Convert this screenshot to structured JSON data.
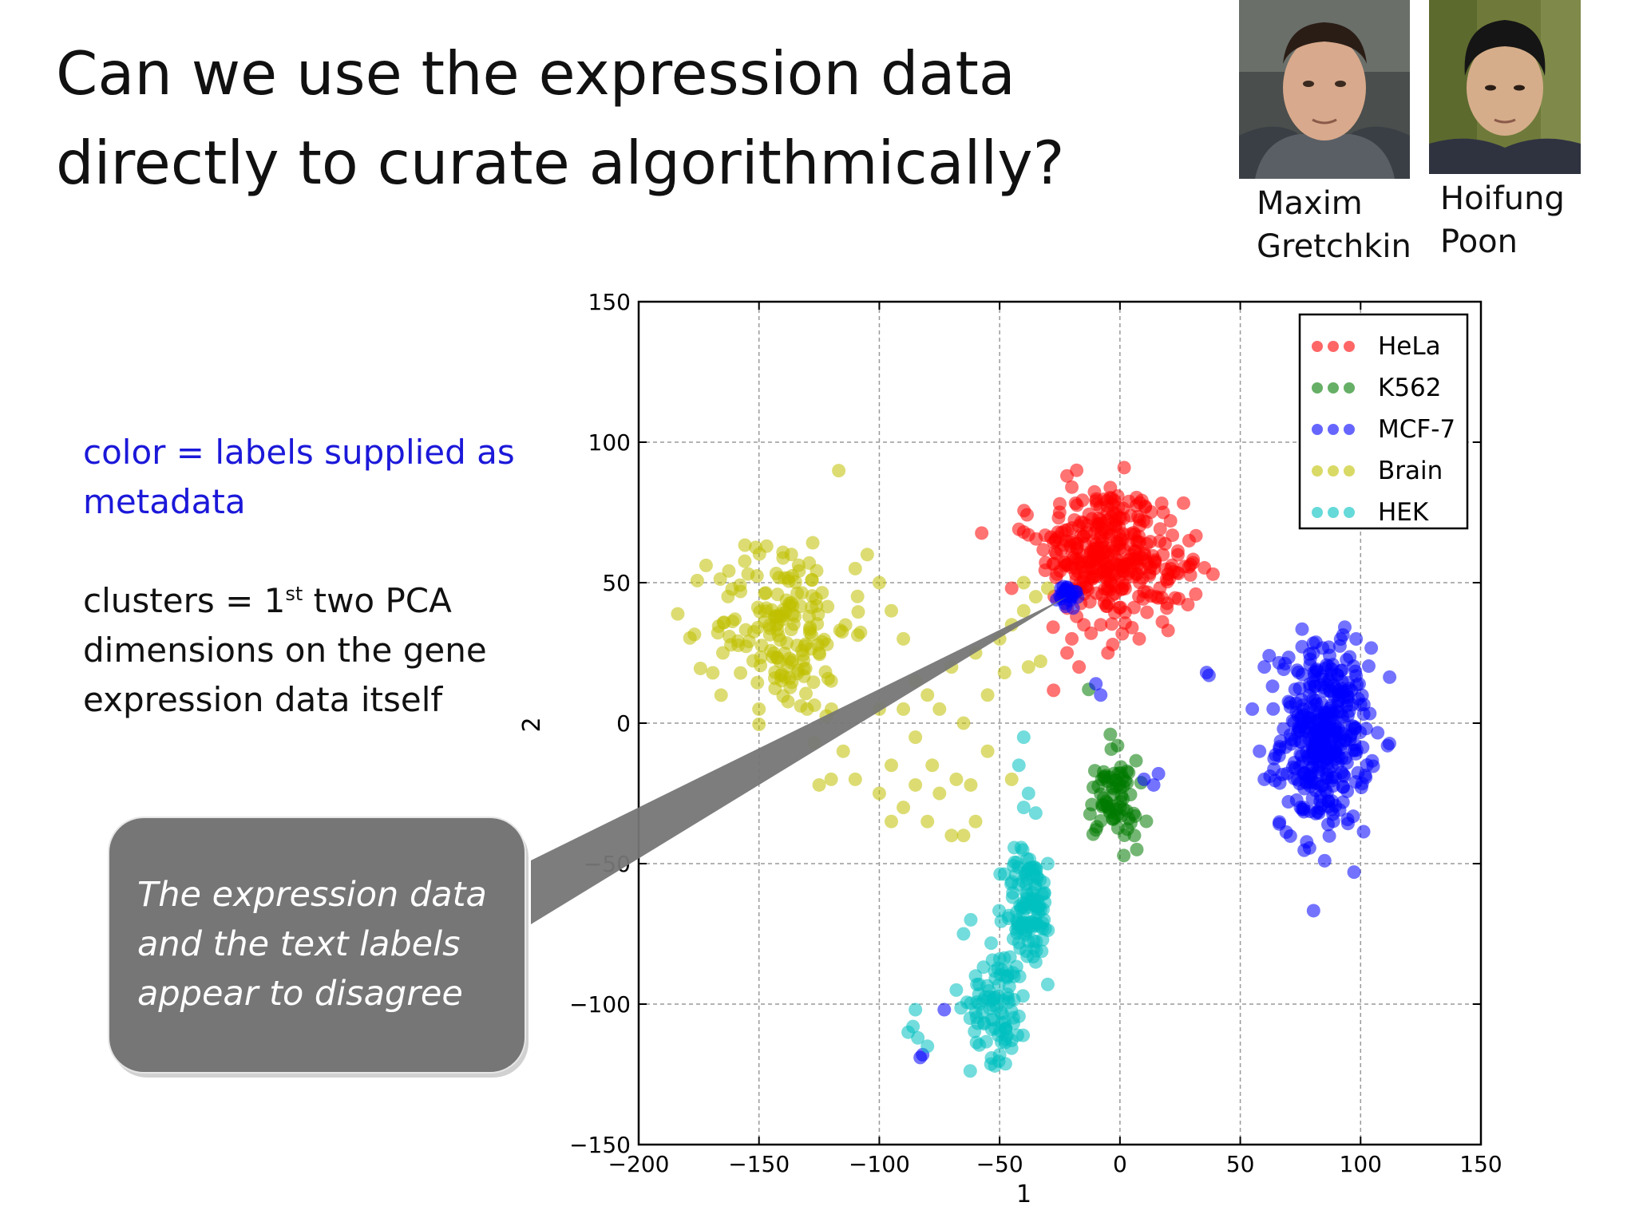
{
  "title": {
    "line1": "Can we use the expression data",
    "line2": "directly to curate algorithmically?"
  },
  "people": [
    {
      "first": "Maxim",
      "last": "Gretchkin"
    },
    {
      "first": "Hoifung",
      "last": "Poon"
    }
  ],
  "notes": {
    "color_note": "color = labels supplied as metadata",
    "clusters_a": "clusters = 1",
    "clusters_sup": "st",
    "clusters_b": " two PCA dimensions on the gene expression data itself"
  },
  "callout": {
    "line1": "The expression data",
    "line2": "and the text labels",
    "line3": "appear to disagree"
  },
  "colors": {
    "HeLa": "#ff0000",
    "K562": "#007a00",
    "MCF-7": "#0000ff",
    "Brain": "#bfbf00",
    "HEK": "#00bfbf",
    "callout": "#767676"
  },
  "chart_data": {
    "type": "scatter",
    "xlabel": "1",
    "ylabel": "2",
    "xlim": [
      -200,
      150
    ],
    "ylim": [
      -150,
      150
    ],
    "xticks": [
      "−200",
      "−150",
      "−100",
      "−50",
      "0",
      "50",
      "100",
      "150"
    ],
    "yticks": [
      "−150",
      "−100",
      "−50",
      "0",
      "50",
      "100",
      "150"
    ],
    "grid": true,
    "legend_position": "top-right",
    "series": [
      {
        "name": "HeLa",
        "color": "#ff0000",
        "clusters": [
          {
            "cx": -9,
            "cy": 62,
            "sx": 12,
            "sy": 12,
            "n": 230
          },
          {
            "cx": 10,
            "cy": 55,
            "sx": 12,
            "sy": 10,
            "n": 110
          }
        ],
        "points": [
          [
            -22,
            88
          ],
          [
            -20,
            84
          ],
          [
            -18,
            90
          ],
          [
            -40,
            68
          ],
          [
            -42,
            69
          ],
          [
            -38,
            67
          ],
          [
            -45,
            48
          ],
          [
            -18,
            38
          ],
          [
            -15,
            35
          ],
          [
            -12,
            32
          ],
          [
            -20,
            30
          ],
          [
            -22,
            25
          ],
          [
            -17,
            20
          ],
          [
            -8,
            35
          ],
          [
            5,
            34
          ],
          [
            8,
            30
          ],
          [
            20,
            33
          ],
          [
            -5,
            25
          ],
          [
            -3,
            28
          ],
          [
            15,
            45
          ],
          [
            18,
            75
          ],
          [
            21,
            72
          ]
        ]
      },
      {
        "name": "K562",
        "color": "#007a00",
        "clusters": [
          {
            "cx": -3,
            "cy": -27,
            "sx": 5,
            "sy": 7,
            "n": 70
          }
        ],
        "points": [
          [
            -1,
            -8
          ],
          [
            -4,
            -4
          ],
          [
            -13,
            12
          ],
          [
            6,
            -40
          ],
          [
            7,
            -45
          ],
          [
            -10,
            -38
          ]
        ]
      },
      {
        "name": "MCF-7",
        "color": "#0000ff",
        "clusters": [
          {
            "cx": 85,
            "cy": -5,
            "sx": 9,
            "sy": 16,
            "n": 380
          },
          {
            "cx": -22,
            "cy": 45,
            "sx": 2,
            "sy": 2.5,
            "n": 25
          }
        ],
        "points": [
          [
            36,
            18
          ],
          [
            37,
            17
          ],
          [
            -10,
            14
          ],
          [
            -8,
            10
          ],
          [
            16,
            -18
          ],
          [
            14,
            -22
          ],
          [
            10,
            -20
          ],
          [
            60,
            20
          ],
          [
            62,
            24
          ],
          [
            55,
            5
          ],
          [
            58,
            -10
          ],
          [
            60,
            -20
          ],
          [
            70,
            -28
          ],
          [
            75,
            -30
          ],
          [
            -73,
            -102
          ],
          [
            -82,
            -118
          ],
          [
            -83,
            -119
          ]
        ]
      },
      {
        "name": "Brain",
        "color": "#bfbf00",
        "clusters": [
          {
            "cx": -140,
            "cy": 35,
            "sx": 14,
            "sy": 16,
            "n": 170
          }
        ],
        "points": [
          [
            -160,
            37
          ],
          [
            -165,
            25
          ],
          [
            -150,
            5
          ],
          [
            -130,
            5
          ],
          [
            -120,
            15
          ],
          [
            -110,
            55
          ],
          [
            -105,
            60
          ],
          [
            -100,
            50
          ],
          [
            -95,
            40
          ],
          [
            -90,
            30
          ],
          [
            -85,
            15
          ],
          [
            -115,
            -10
          ],
          [
            -110,
            -20
          ],
          [
            -100,
            -25
          ],
          [
            -90,
            -30
          ],
          [
            -80,
            -35
          ],
          [
            -70,
            -40
          ],
          [
            -65,
            -40
          ],
          [
            -60,
            -35
          ],
          [
            -95,
            -15
          ],
          [
            -85,
            -5
          ],
          [
            -75,
            -25
          ],
          [
            -100,
            5
          ],
          [
            -90,
            5
          ],
          [
            -80,
            10
          ],
          [
            -70,
            20
          ],
          [
            -60,
            25
          ],
          [
            -50,
            30
          ],
          [
            -45,
            35
          ],
          [
            -40,
            40
          ],
          [
            -35,
            45
          ],
          [
            -30,
            48
          ],
          [
            -48,
            18
          ],
          [
            -55,
            10
          ],
          [
            -65,
            0
          ],
          [
            -75,
            5
          ],
          [
            -55,
            -10
          ],
          [
            -62,
            -22
          ],
          [
            -68,
            -20
          ],
          [
            -78,
            -15
          ],
          [
            -85,
            -22
          ],
          [
            -120,
            -20
          ],
          [
            -125,
            -22
          ],
          [
            -95,
            -35
          ],
          [
            -40,
            50
          ],
          [
            -38,
            20
          ],
          [
            -33,
            22
          ],
          [
            -45,
            -20
          ]
        ]
      },
      {
        "name": "HEK",
        "color": "#00bfbf",
        "clusters": [
          {
            "cx": -38,
            "cy": -65,
            "sx": 5,
            "sy": 10,
            "n": 110
          },
          {
            "cx": -50,
            "cy": -100,
            "sx": 6,
            "sy": 10,
            "n": 90
          }
        ],
        "points": [
          [
            -40,
            -5
          ],
          [
            -42,
            -15
          ],
          [
            -38,
            -25
          ],
          [
            -40,
            -30
          ],
          [
            -35,
            -32
          ],
          [
            -30,
            -50
          ],
          [
            -62,
            -70
          ],
          [
            -65,
            -75
          ],
          [
            -60,
            -90
          ],
          [
            -68,
            -95
          ],
          [
            -85,
            -102
          ],
          [
            -86,
            -108
          ],
          [
            -88,
            -110
          ],
          [
            -84,
            -112
          ],
          [
            -80,
            -115
          ],
          [
            -35,
            -85
          ],
          [
            -30,
            -93
          ],
          [
            -50,
            -118
          ],
          [
            -52,
            -122
          ]
        ]
      }
    ]
  }
}
